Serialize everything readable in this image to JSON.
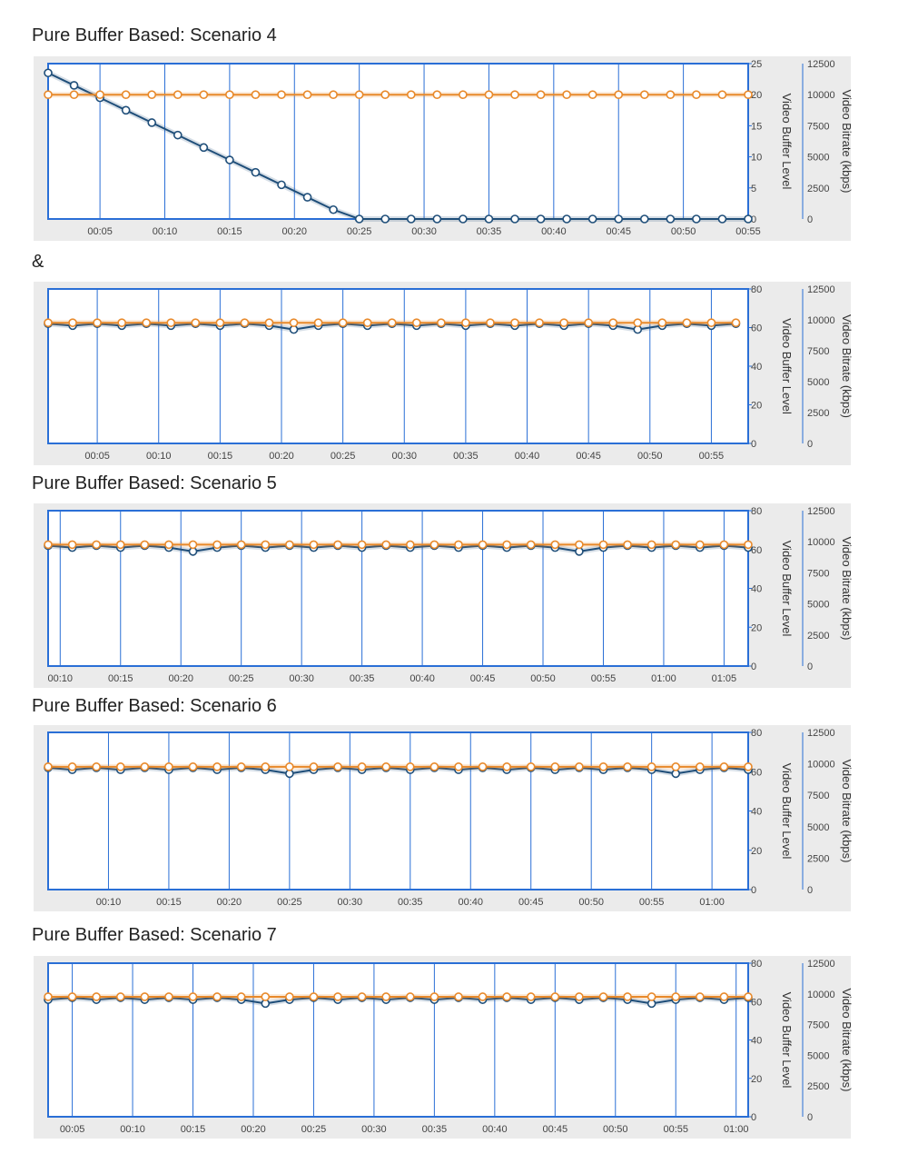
{
  "headings": [
    "Pure Buffer Based: Scenario 4",
    "&",
    "Pure Buffer Based: Scenario 5",
    "Pure Buffer Based: Scenario 6",
    "Pure Buffer Based: Scenario 7"
  ],
  "colors": {
    "buffer": "#1f4e79",
    "bitrate": "#e8892a",
    "frame": "#2a6fd6",
    "panel": "#ebebeb"
  },
  "chart_data": [
    {
      "type": "line",
      "title": "Pure Buffer Based: Scenario 4",
      "x_ticks": [
        "00:05",
        "00:10",
        "00:15",
        "00:20",
        "00:25",
        "00:30",
        "00:35",
        "00:40",
        "00:45",
        "00:50",
        "00:55"
      ],
      "x_tick_values": [
        5,
        10,
        15,
        20,
        25,
        30,
        35,
        40,
        45,
        50,
        55
      ],
      "xlim": [
        1,
        55
      ],
      "y_left_label": "Video Buffer Level",
      "y_left_ticks": [
        0,
        5,
        10,
        15,
        20,
        25
      ],
      "y_left_lim": [
        0,
        25
      ],
      "y_right_label": "Video Bitrate (kbps)",
      "y_right_ticks": [
        0,
        2500,
        5000,
        7500,
        10000,
        12500
      ],
      "y_right_lim": [
        0,
        12500
      ],
      "series": [
        {
          "axis": "left",
          "x": [
            1,
            3,
            5,
            7,
            9,
            11,
            13,
            15,
            17,
            19,
            21,
            23,
            25,
            27,
            29,
            31,
            33,
            35,
            37,
            39,
            41,
            43,
            45,
            47,
            49,
            51,
            53,
            55
          ],
          "values": [
            23.5,
            21.5,
            19.5,
            17.5,
            15.5,
            13.5,
            11.5,
            9.5,
            7.5,
            5.5,
            3.5,
            1.5,
            0,
            0,
            0,
            0,
            0,
            0,
            0,
            0,
            0,
            0,
            0,
            0,
            0,
            0,
            0,
            0
          ]
        },
        {
          "axis": "left",
          "x": [
            1,
            3,
            5,
            7,
            9,
            11,
            13,
            15,
            17,
            19,
            21,
            23,
            25,
            27,
            29,
            31,
            33,
            35,
            37,
            39,
            41,
            43,
            45,
            47,
            49,
            51,
            53,
            55
          ],
          "values": [
            20,
            20,
            20,
            20,
            20,
            20,
            20,
            20,
            20,
            20,
            20,
            20,
            20,
            20,
            20,
            20,
            20,
            20,
            20,
            20,
            20,
            20,
            20,
            20,
            20,
            20,
            20,
            20
          ]
        }
      ]
    },
    {
      "type": "line",
      "title": "",
      "x_ticks": [
        "00:05",
        "00:10",
        "00:15",
        "00:20",
        "00:25",
        "00:30",
        "00:35",
        "00:40",
        "00:45",
        "00:50",
        "00:55"
      ],
      "x_tick_values": [
        5,
        10,
        15,
        20,
        25,
        30,
        35,
        40,
        45,
        50,
        55
      ],
      "xlim": [
        1,
        58
      ],
      "y_left_label": "Video Buffer Level",
      "y_left_ticks": [
        0,
        20,
        40,
        60,
        80
      ],
      "y_left_lim": [
        0,
        80
      ],
      "y_right_label": "Video Bitrate (kbps)",
      "y_right_ticks": [
        0,
        2500,
        5000,
        7500,
        10000,
        12500
      ],
      "y_right_lim": [
        0,
        12500
      ],
      "series": [
        {
          "axis": "left",
          "x": [
            1,
            3,
            5,
            7,
            9,
            11,
            13,
            15,
            17,
            19,
            21,
            23,
            25,
            27,
            29,
            31,
            33,
            35,
            37,
            39,
            41,
            43,
            45,
            47,
            49,
            51,
            53,
            55,
            57
          ],
          "values": [
            62,
            61,
            62,
            61,
            62,
            61,
            62,
            61,
            62,
            61,
            59,
            61,
            62,
            61,
            62,
            61,
            62,
            61,
            62,
            61,
            62,
            61,
            62,
            61,
            59,
            61,
            62,
            61,
            62
          ]
        },
        {
          "axis": "left",
          "x": [
            1,
            3,
            5,
            7,
            9,
            11,
            13,
            15,
            17,
            19,
            21,
            23,
            25,
            27,
            29,
            31,
            33,
            35,
            37,
            39,
            41,
            43,
            45,
            47,
            49,
            51,
            53,
            55,
            57
          ],
          "values": [
            62.5,
            62.5,
            62.5,
            62.5,
            62.5,
            62.5,
            62.5,
            62.5,
            62.5,
            62.5,
            62.5,
            62.5,
            62.5,
            62.5,
            62.5,
            62.5,
            62.5,
            62.5,
            62.5,
            62.5,
            62.5,
            62.5,
            62.5,
            62.5,
            62.5,
            62.5,
            62.5,
            62.5,
            62.5
          ]
        }
      ]
    },
    {
      "type": "line",
      "title": "Pure Buffer Based: Scenario 5",
      "x_ticks": [
        "00:10",
        "00:15",
        "00:20",
        "00:25",
        "00:30",
        "00:35",
        "00:40",
        "00:45",
        "00:50",
        "00:55",
        "01:00",
        "01:05"
      ],
      "x_tick_values": [
        10,
        15,
        20,
        25,
        30,
        35,
        40,
        45,
        50,
        55,
        60,
        65
      ],
      "xlim": [
        9,
        67
      ],
      "y_left_label": "Video Buffer Level",
      "y_left_ticks": [
        0,
        20,
        40,
        60,
        80
      ],
      "y_left_lim": [
        0,
        80
      ],
      "y_right_label": "Video Bitrate (kbps)",
      "y_right_ticks": [
        0,
        2500,
        5000,
        7500,
        10000,
        12500
      ],
      "y_right_lim": [
        0,
        12500
      ],
      "series": [
        {
          "axis": "left",
          "x": [
            9,
            11,
            13,
            15,
            17,
            19,
            21,
            23,
            25,
            27,
            29,
            31,
            33,
            35,
            37,
            39,
            41,
            43,
            45,
            47,
            49,
            51,
            53,
            55,
            57,
            59,
            61,
            63,
            65,
            67
          ],
          "values": [
            62,
            61,
            62,
            61,
            62,
            61,
            59,
            61,
            62,
            61,
            62,
            61,
            62,
            61,
            62,
            61,
            62,
            61,
            62,
            61,
            62,
            61,
            59,
            61,
            62,
            61,
            62,
            61,
            62,
            61
          ]
        },
        {
          "axis": "left",
          "x": [
            9,
            11,
            13,
            15,
            17,
            19,
            21,
            23,
            25,
            27,
            29,
            31,
            33,
            35,
            37,
            39,
            41,
            43,
            45,
            47,
            49,
            51,
            53,
            55,
            57,
            59,
            61,
            63,
            65,
            67
          ],
          "values": [
            62.5,
            62.5,
            62.5,
            62.5,
            62.5,
            62.5,
            62.5,
            62.5,
            62.5,
            62.5,
            62.5,
            62.5,
            62.5,
            62.5,
            62.5,
            62.5,
            62.5,
            62.5,
            62.5,
            62.5,
            62.5,
            62.5,
            62.5,
            62.5,
            62.5,
            62.5,
            62.5,
            62.5,
            62.5,
            62.5
          ]
        }
      ]
    },
    {
      "type": "line",
      "title": "Pure Buffer Based: Scenario 6",
      "x_ticks": [
        "00:10",
        "00:15",
        "00:20",
        "00:25",
        "00:30",
        "00:35",
        "00:40",
        "00:45",
        "00:50",
        "00:55",
        "01:00"
      ],
      "x_tick_values": [
        10,
        15,
        20,
        25,
        30,
        35,
        40,
        45,
        50,
        55,
        60
      ],
      "xlim": [
        5,
        63
      ],
      "y_left_label": "Video Buffer Level",
      "y_left_ticks": [
        0,
        20,
        40,
        60,
        80
      ],
      "y_left_lim": [
        0,
        80
      ],
      "y_right_label": "Video Bitrate (kbps)",
      "y_right_ticks": [
        0,
        2500,
        5000,
        7500,
        10000,
        12500
      ],
      "y_right_lim": [
        0,
        12500
      ],
      "series": [
        {
          "axis": "left",
          "x": [
            5,
            7,
            9,
            11,
            13,
            15,
            17,
            19,
            21,
            23,
            25,
            27,
            29,
            31,
            33,
            35,
            37,
            39,
            41,
            43,
            45,
            47,
            49,
            51,
            53,
            55,
            57,
            59,
            61,
            63
          ],
          "values": [
            62,
            61,
            62,
            61,
            62,
            61,
            62,
            61,
            62,
            61,
            59,
            61,
            62,
            61,
            62,
            61,
            62,
            61,
            62,
            61,
            62,
            61,
            62,
            61,
            62,
            61,
            59,
            61,
            62,
            61
          ]
        },
        {
          "axis": "left",
          "x": [
            5,
            7,
            9,
            11,
            13,
            15,
            17,
            19,
            21,
            23,
            25,
            27,
            29,
            31,
            33,
            35,
            37,
            39,
            41,
            43,
            45,
            47,
            49,
            51,
            53,
            55,
            57,
            59,
            61,
            63
          ],
          "values": [
            62.5,
            62.5,
            62.5,
            62.5,
            62.5,
            62.5,
            62.5,
            62.5,
            62.5,
            62.5,
            62.5,
            62.5,
            62.5,
            62.5,
            62.5,
            62.5,
            62.5,
            62.5,
            62.5,
            62.5,
            62.5,
            62.5,
            62.5,
            62.5,
            62.5,
            62.5,
            62.5,
            62.5,
            62.5,
            62.5
          ]
        }
      ]
    },
    {
      "type": "line",
      "title": "Pure Buffer Based: Scenario 7",
      "x_ticks": [
        "00:05",
        "00:10",
        "00:15",
        "00:20",
        "00:25",
        "00:30",
        "00:35",
        "00:40",
        "00:45",
        "00:50",
        "00:55",
        "01:00"
      ],
      "x_tick_values": [
        5,
        10,
        15,
        20,
        25,
        30,
        35,
        40,
        45,
        50,
        55,
        60
      ],
      "xlim": [
        3,
        61
      ],
      "y_left_label": "Video Buffer Level",
      "y_left_ticks": [
        0,
        20,
        40,
        60,
        80
      ],
      "y_left_lim": [
        0,
        80
      ],
      "y_right_label": "Video Bitrate (kbps)",
      "y_right_ticks": [
        0,
        2500,
        5000,
        7500,
        10000,
        12500
      ],
      "y_right_lim": [
        0,
        12500
      ],
      "series": [
        {
          "axis": "left",
          "x": [
            3,
            5,
            7,
            9,
            11,
            13,
            15,
            17,
            19,
            21,
            23,
            25,
            27,
            29,
            31,
            33,
            35,
            37,
            39,
            41,
            43,
            45,
            47,
            49,
            51,
            53,
            55,
            57,
            59,
            61
          ],
          "values": [
            61,
            62,
            61,
            62,
            61,
            62,
            61,
            62,
            61,
            59,
            61,
            62,
            61,
            62,
            61,
            62,
            61,
            62,
            61,
            62,
            61,
            62,
            61,
            62,
            61,
            59,
            61,
            62,
            61,
            62
          ]
        },
        {
          "axis": "left",
          "x": [
            3,
            5,
            7,
            9,
            11,
            13,
            15,
            17,
            19,
            21,
            23,
            25,
            27,
            29,
            31,
            33,
            35,
            37,
            39,
            41,
            43,
            45,
            47,
            49,
            51,
            53,
            55,
            57,
            59,
            61
          ],
          "values": [
            62.5,
            62.5,
            62.5,
            62.5,
            62.5,
            62.5,
            62.5,
            62.5,
            62.5,
            62.5,
            62.5,
            62.5,
            62.5,
            62.5,
            62.5,
            62.5,
            62.5,
            62.5,
            62.5,
            62.5,
            62.5,
            62.5,
            62.5,
            62.5,
            62.5,
            62.5,
            62.5,
            62.5,
            62.5,
            62.5
          ]
        }
      ]
    }
  ]
}
